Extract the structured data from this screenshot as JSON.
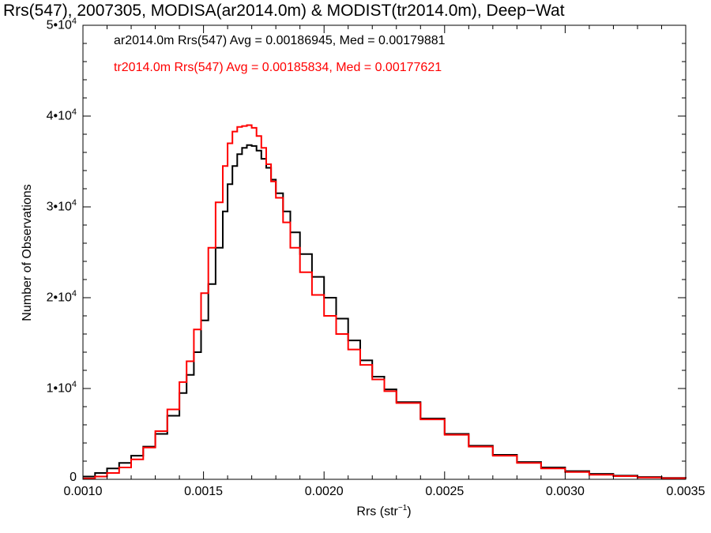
{
  "chart_data": {
    "type": "line",
    "title": "Rrs(547), 2007305, MODISA(ar2014.0m) & MODIST(tr2014.0m), Deep−Wat",
    "xlabel": "Rrs (str",
    "xlabel_sup": "−1",
    "xlabel_tail": ")",
    "ylabel": "Number of Observations",
    "xlim": [
      0.001,
      0.0035
    ],
    "ylim": [
      0,
      50000
    ],
    "x_ticks": [
      "0.0010",
      "0.0015",
      "0.0020",
      "0.0025",
      "0.0030",
      "0.0035"
    ],
    "y_ticks": [
      {
        "value": 0,
        "base": "0",
        "exp": ""
      },
      {
        "value": 10000,
        "base": "1•10",
        "exp": "4"
      },
      {
        "value": 20000,
        "base": "2•10",
        "exp": "4"
      },
      {
        "value": 30000,
        "base": "3•10",
        "exp": "4"
      },
      {
        "value": 40000,
        "base": "4•10",
        "exp": "4"
      },
      {
        "value": 50000,
        "base": "5•10",
        "exp": "4"
      }
    ],
    "grid": false,
    "legend_position": "top-left",
    "series": [
      {
        "name": "ar2014.0m",
        "color": "#000000",
        "legend_text": "ar2014.0m Rrs(547) Avg = 0.00186945, Med = 0.00179881",
        "x": [
          0.001,
          0.00105,
          0.0011,
          0.00115,
          0.0012,
          0.00125,
          0.0013,
          0.00135,
          0.0014,
          0.00143,
          0.00146,
          0.00149,
          0.00152,
          0.00155,
          0.00158,
          0.0016,
          0.00162,
          0.00164,
          0.00166,
          0.00168,
          0.0017,
          0.00172,
          0.00174,
          0.00176,
          0.00178,
          0.0018,
          0.00183,
          0.00186,
          0.0019,
          0.00195,
          0.002,
          0.00205,
          0.0021,
          0.00215,
          0.0022,
          0.00225,
          0.0023,
          0.0024,
          0.0025,
          0.0026,
          0.0027,
          0.0028,
          0.0029,
          0.003,
          0.0031,
          0.0032,
          0.0033,
          0.0034,
          0.0035
        ],
        "y": [
          300,
          700,
          1200,
          1800,
          2600,
          3600,
          5000,
          7000,
          9500,
          11500,
          14000,
          17500,
          21500,
          25500,
          29500,
          32500,
          34500,
          35800,
          36500,
          36800,
          36700,
          36200,
          35300,
          34300,
          33000,
          31500,
          29500,
          27200,
          24800,
          22300,
          20000,
          17700,
          15300,
          13100,
          11300,
          9900,
          8500,
          6700,
          5000,
          3700,
          2700,
          1900,
          1300,
          900,
          600,
          400,
          250,
          150,
          100
        ]
      },
      {
        "name": "tr2014.0m",
        "color": "#ff0000",
        "legend_text": "tr2014.0m Rrs(547) Avg = 0.00185834, Med = 0.00177621",
        "x": [
          0.001,
          0.00105,
          0.0011,
          0.00115,
          0.0012,
          0.00125,
          0.0013,
          0.00135,
          0.0014,
          0.00143,
          0.00146,
          0.00149,
          0.00152,
          0.00155,
          0.00158,
          0.0016,
          0.00162,
          0.00164,
          0.00166,
          0.00168,
          0.0017,
          0.00172,
          0.00174,
          0.00176,
          0.00178,
          0.0018,
          0.00183,
          0.00186,
          0.0019,
          0.00195,
          0.002,
          0.00205,
          0.0021,
          0.00215,
          0.0022,
          0.00225,
          0.0023,
          0.0024,
          0.0025,
          0.0026,
          0.0027,
          0.0028,
          0.0029,
          0.003,
          0.0031,
          0.0032,
          0.0033,
          0.0034,
          0.0035
        ],
        "y": [
          100,
          300,
          700,
          1300,
          2200,
          3500,
          5300,
          7700,
          10700,
          13000,
          16500,
          20500,
          25500,
          30500,
          34500,
          37000,
          38300,
          38800,
          38900,
          39000,
          38700,
          37800,
          36500,
          34700,
          32800,
          31000,
          28300,
          25500,
          22800,
          20300,
          18000,
          16000,
          14300,
          12600,
          11000,
          9700,
          8400,
          6600,
          4900,
          3600,
          2600,
          1800,
          1200,
          800,
          500,
          350,
          200,
          120,
          80
        ]
      }
    ]
  }
}
